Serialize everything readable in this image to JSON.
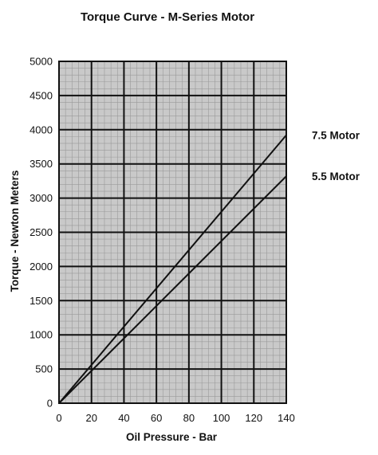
{
  "chart_data": {
    "type": "line",
    "title": "Torque Curve - M-Series Motor",
    "xlabel": "Oil Pressure - Bar",
    "ylabel": "Torque - Newton Meters",
    "xlim": [
      0,
      140
    ],
    "ylim": [
      0,
      5000
    ],
    "x_ticks": [
      0,
      20,
      40,
      60,
      80,
      100,
      120,
      140
    ],
    "y_ticks": [
      0,
      500,
      1000,
      1500,
      2000,
      2500,
      3000,
      3500,
      4000,
      4500,
      5000
    ],
    "grid": true,
    "legend": "right",
    "series": [
      {
        "name": "7.5 Motor",
        "x": [
          0,
          140
        ],
        "values": [
          0,
          3920
        ]
      },
      {
        "name": "5.5 Motor",
        "x": [
          0,
          140
        ],
        "values": [
          0,
          3320
        ]
      }
    ],
    "colors": {
      "background": "#ffffff",
      "plot": "#c9c9c9",
      "minor_grid": "#9a9a9a",
      "major_grid": "#111111",
      "line": "#111111"
    }
  }
}
